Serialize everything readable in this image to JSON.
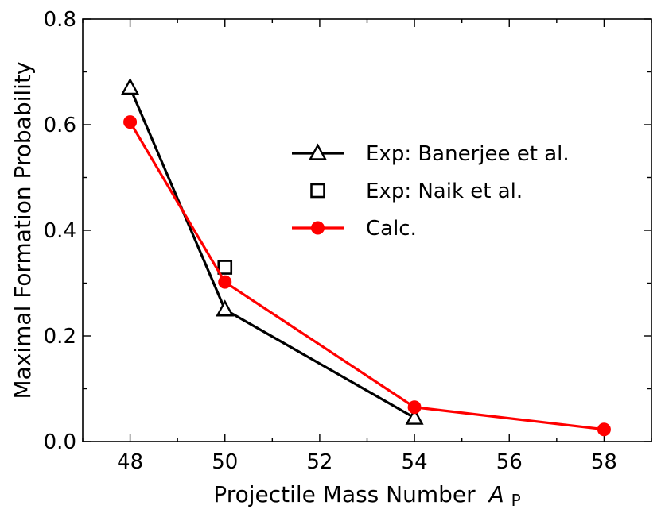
{
  "chart_data": {
    "type": "line",
    "xlabel": "Projectile Mass Number",
    "xlabel_symbol": "A",
    "xlabel_subscript": "P",
    "ylabel": "Maximal Formation Probability",
    "xlim": [
      47,
      59
    ],
    "ylim": [
      0,
      0.8
    ],
    "xticks": [
      48,
      50,
      52,
      54,
      56,
      58
    ],
    "yticks": [
      0.0,
      0.2,
      0.4,
      0.6,
      0.8
    ],
    "xtick_labels": [
      "48",
      "50",
      "52",
      "54",
      "56",
      "58"
    ],
    "ytick_labels": [
      "0.0",
      "0.2",
      "0.4",
      "0.6",
      "0.8"
    ],
    "grid": false,
    "legend_position": "right",
    "series": [
      {
        "name": "Exp: Banerjee et al.",
        "color": "#000000",
        "marker": "triangle-open",
        "line": true,
        "x": [
          48,
          50,
          54
        ],
        "y": [
          0.67,
          0.25,
          0.045
        ]
      },
      {
        "name": "Exp: Naik et al.",
        "color": "#000000",
        "marker": "square-open",
        "line": false,
        "x": [
          50
        ],
        "y": [
          0.33
        ]
      },
      {
        "name": "Calc.",
        "color": "#ff0000",
        "marker": "circle-filled",
        "line": true,
        "x": [
          48,
          50,
          54,
          58
        ],
        "y": [
          0.605,
          0.302,
          0.065,
          0.023
        ]
      }
    ]
  }
}
